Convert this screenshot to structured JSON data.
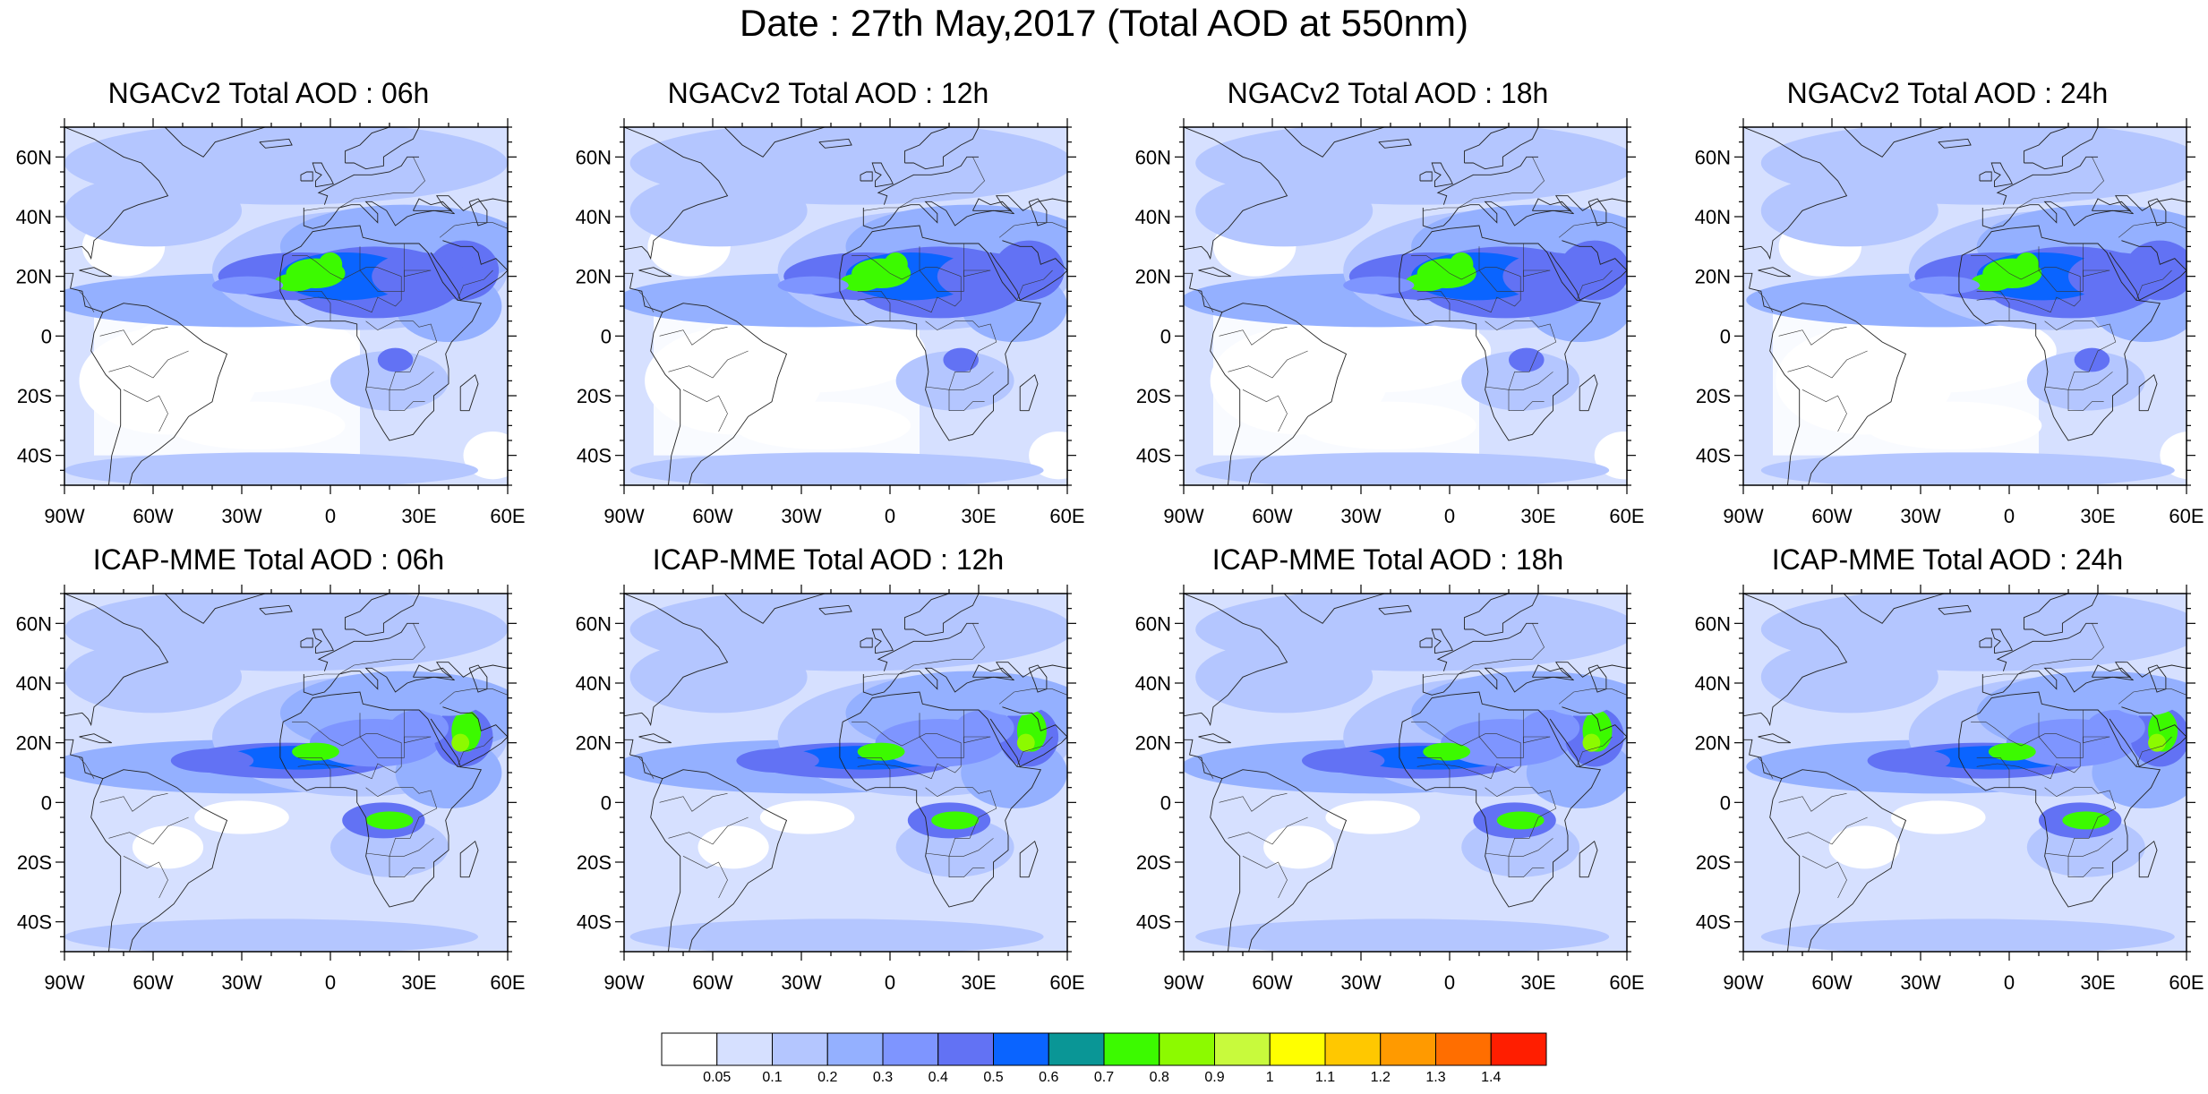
{
  "title": "Date : 27th May,2017 (Total AOD at 550nm)",
  "lon_ticks": [
    "90W",
    "60W",
    "30W",
    "0",
    "30E",
    "60E"
  ],
  "lat_ticks": [
    "60N",
    "40N",
    "20N",
    "0",
    "20S",
    "40S"
  ],
  "extent": {
    "lon": [
      -90,
      60
    ],
    "lat": [
      -50,
      70
    ]
  },
  "panels": [
    {
      "title": "NGACv2 Total AOD : 06h",
      "model": "NGACv2",
      "forecast_hour": 6
    },
    {
      "title": "NGACv2 Total AOD : 12h",
      "model": "NGACv2",
      "forecast_hour": 12
    },
    {
      "title": "NGACv2 Total AOD : 18h",
      "model": "NGACv2",
      "forecast_hour": 18
    },
    {
      "title": "NGACv2 Total AOD : 24h",
      "model": "NGACv2",
      "forecast_hour": 24
    },
    {
      "title": "ICAP-MME Total AOD : 06h",
      "model": "ICAP-MME",
      "forecast_hour": 6
    },
    {
      "title": "ICAP-MME Total AOD : 12h",
      "model": "ICAP-MME",
      "forecast_hour": 12
    },
    {
      "title": "ICAP-MME Total AOD : 18h",
      "model": "ICAP-MME",
      "forecast_hour": 18
    },
    {
      "title": "ICAP-MME Total AOD : 24h",
      "model": "ICAP-MME",
      "forecast_hour": 24
    }
  ],
  "colorbar": {
    "labels": [
      "0.05",
      "0.1",
      "0.2",
      "0.3",
      "0.4",
      "0.5",
      "0.6",
      "0.7",
      "0.8",
      "0.9",
      "1",
      "1.1",
      "1.2",
      "1.3",
      "1.4"
    ],
    "colors": [
      "#ffffff",
      "#d6e0ff",
      "#b4c6ff",
      "#94b0ff",
      "#7e95ff",
      "#6272f4",
      "#0a64ff",
      "#0a9696",
      "#3cfa00",
      "#8cfa00",
      "#c8fa3c",
      "#ffff00",
      "#ffc800",
      "#ff9a00",
      "#ff6e00",
      "#ff1e00"
    ]
  }
}
